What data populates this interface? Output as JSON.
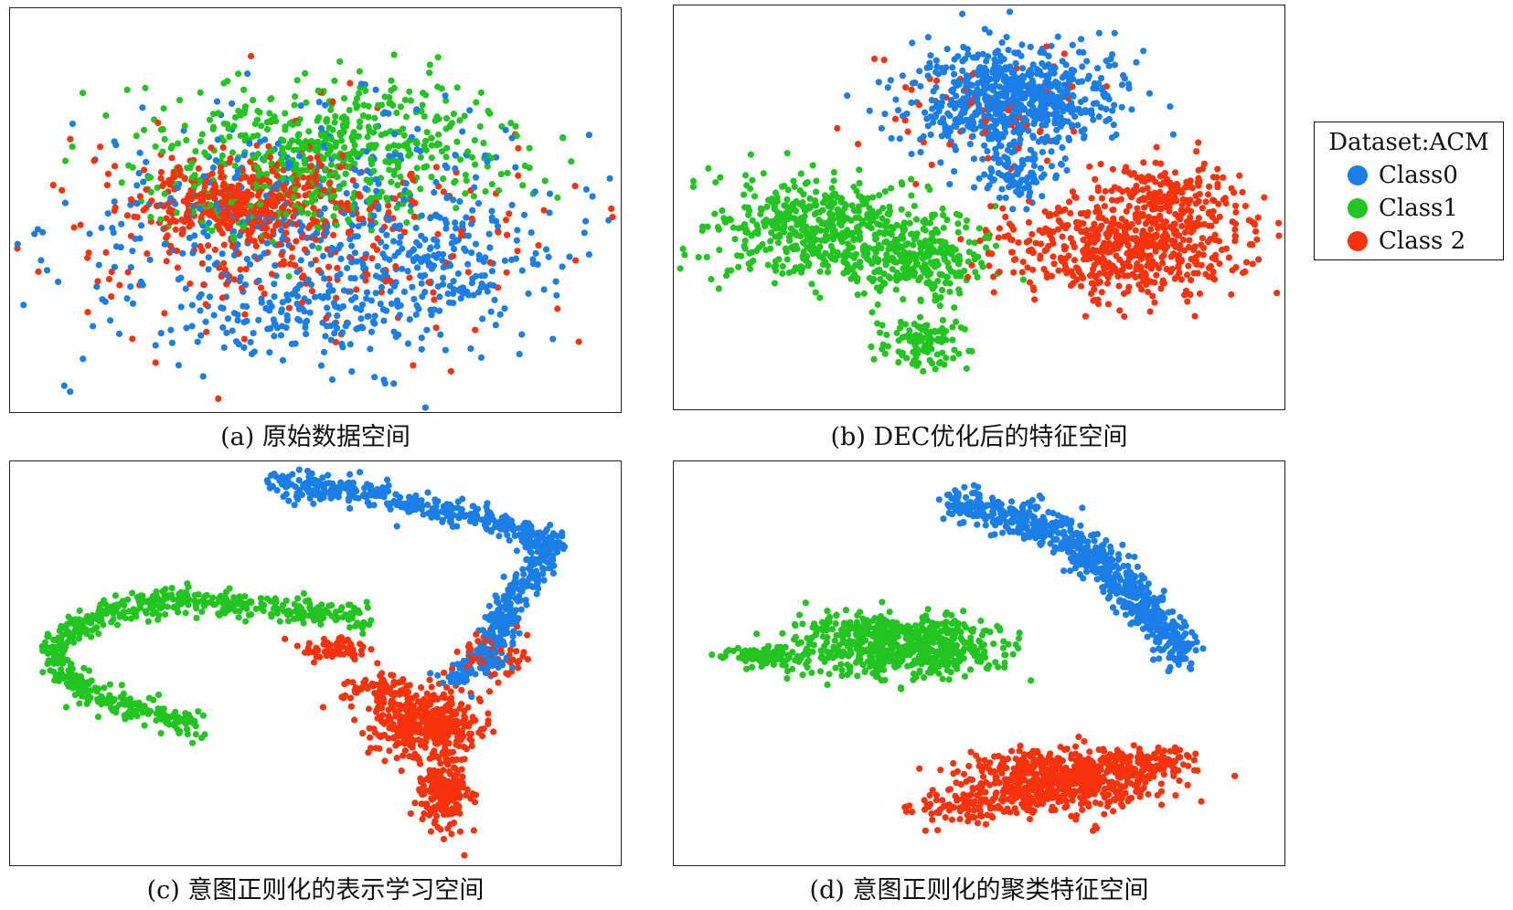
{
  "legend": {
    "title": "Dataset:ACM",
    "items": [
      {
        "label": "Class0",
        "color": "#1a7ee6"
      },
      {
        "label": "Class1",
        "color": "#22c520"
      },
      {
        "label": "Class 2",
        "color": "#f7330e"
      }
    ]
  },
  "chart_data": [
    {
      "type": "scatter",
      "id": "a",
      "caption": "(a) 原始数据空间",
      "grid": false,
      "xlim": [
        0,
        100
      ],
      "ylim": [
        0,
        100
      ],
      "series": [
        {
          "class": 0,
          "color": "#1a7ee6",
          "clusters": [
            {
              "cx": 50,
              "cy": 45,
              "rx": 43,
              "ry": 30,
              "n": 520
            },
            {
              "cx": 72,
              "cy": 34,
              "rx": 18,
              "ry": 14,
              "n": 120
            },
            {
              "cx": 50,
              "cy": 22,
              "rx": 22,
              "ry": 10,
              "n": 120
            }
          ]
        },
        {
          "class": 1,
          "color": "#22c520",
          "clusters": [
            {
              "cx": 55,
              "cy": 67,
              "rx": 30,
              "ry": 18,
              "n": 480
            },
            {
              "cx": 42,
              "cy": 55,
              "rx": 25,
              "ry": 14,
              "n": 120
            }
          ]
        },
        {
          "class": 2,
          "color": "#f7330e",
          "clusters": [
            {
              "cx": 38,
              "cy": 52,
              "rx": 18,
              "ry": 10,
              "n": 360
            },
            {
              "cx": 45,
              "cy": 45,
              "rx": 40,
              "ry": 28,
              "n": 280
            }
          ]
        }
      ]
    },
    {
      "type": "scatter",
      "id": "b",
      "caption": "(b) DEC优化后的特征空间",
      "grid": false,
      "xlim": [
        0,
        100
      ],
      "ylim": [
        0,
        100
      ],
      "series": [
        {
          "class": 0,
          "color": "#1a7ee6",
          "clusters": [
            {
              "cx": 56,
              "cy": 79,
              "rx": 17,
              "ry": 14,
              "n": 700
            },
            {
              "cx": 57,
              "cy": 58,
              "rx": 7,
              "ry": 6,
              "n": 90
            }
          ]
        },
        {
          "class": 1,
          "color": "#22c520",
          "clusters": [
            {
              "cx": 22,
              "cy": 44,
              "rx": 17,
              "ry": 14,
              "n": 480
            },
            {
              "cx": 40,
              "cy": 36,
              "rx": 12,
              "ry": 11,
              "n": 260
            },
            {
              "cx": 40,
              "cy": 14,
              "rx": 8,
              "ry": 6,
              "n": 110
            }
          ]
        },
        {
          "class": 2,
          "color": "#f7330e",
          "clusters": [
            {
              "cx": 74,
              "cy": 40,
              "rx": 21,
              "ry": 13,
              "n": 560
            },
            {
              "cx": 82,
              "cy": 53,
              "rx": 12,
              "ry": 9,
              "n": 180
            },
            {
              "cx": 52,
              "cy": 75,
              "rx": 20,
              "ry": 15,
              "n": 60
            }
          ]
        }
      ]
    },
    {
      "type": "scatter",
      "id": "c",
      "caption": "(c) 意图正则化的表示学习空间",
      "grid": false,
      "xlim": [
        0,
        100
      ],
      "ylim": [
        0,
        100
      ],
      "series": [
        {
          "class": 0,
          "color": "#1a7ee6",
          "paths": [
            {
              "pts": [
                [
                  42,
                  98
                ],
                [
                  58,
                  95
                ],
                [
                  70,
                  91
                ],
                [
                  80,
                  87
                ],
                [
                  87,
                  84
                ],
                [
                  92,
                  80
                ]
              ],
              "w": 2.6,
              "n": 380
            },
            {
              "pts": [
                [
                  90,
                  80
                ],
                [
                  86,
                  72
                ],
                [
                  82,
                  62
                ],
                [
                  80,
                  52
                ],
                [
                  74,
                  46
                ]
              ],
              "w": 3.0,
              "n": 300
            }
          ]
        },
        {
          "class": 1,
          "color": "#22c520",
          "paths": [
            {
              "pts": [
                [
                  59,
                  62
                ],
                [
                  48,
                  64
                ],
                [
                  36,
                  66
                ],
                [
                  25,
                  67
                ],
                [
                  16,
                  64
                ],
                [
                  8,
                  59
                ],
                [
                  5,
                  52
                ],
                [
                  8,
                  45
                ],
                [
                  15,
                  40
                ],
                [
                  24,
                  36
                ],
                [
                  31,
                  33
                ]
              ],
              "w": 2.6,
              "n": 620
            }
          ]
        },
        {
          "class": 2,
          "color": "#f7330e",
          "clusters": [
            {
              "cx": 69,
              "cy": 34,
              "rx": 9,
              "ry": 9,
              "n": 400
            },
            {
              "cx": 72,
              "cy": 16,
              "rx": 4,
              "ry": 9,
              "n": 200
            },
            {
              "cx": 60,
              "cy": 43,
              "rx": 6,
              "ry": 4,
              "n": 70
            },
            {
              "cx": 80,
              "cy": 52,
              "rx": 6,
              "ry": 6,
              "n": 60
            },
            {
              "cx": 53,
              "cy": 54,
              "rx": 7,
              "ry": 3,
              "n": 60
            }
          ]
        }
      ]
    },
    {
      "type": "scatter",
      "id": "d",
      "caption": "(d) 意图正则化的聚类特征空间",
      "grid": false,
      "xlim": [
        0,
        100
      ],
      "ylim": [
        0,
        100
      ],
      "series": [
        {
          "class": 0,
          "color": "#1a7ee6",
          "paths": [
            {
              "pts": [
                [
                  46,
                  92
                ],
                [
                  56,
                  89
                ],
                [
                  64,
                  84
                ],
                [
                  70,
                  78
                ],
                [
                  75,
                  70
                ],
                [
                  80,
                  62
                ],
                [
                  85,
                  52
                ]
              ],
              "w": 3.6,
              "n": 760
            }
          ]
        },
        {
          "class": 1,
          "color": "#22c520",
          "clusters": [
            {
              "cx": 37,
              "cy": 54,
              "rx": 16,
              "ry": 8,
              "n": 520
            },
            {
              "cx": 14,
              "cy": 52,
              "rx": 9,
              "ry": 3,
              "n": 90
            },
            {
              "cx": 30,
              "cy": 60,
              "rx": 14,
              "ry": 3,
              "n": 80
            }
          ]
        },
        {
          "class": 2,
          "color": "#f7330e",
          "clusters": [
            {
              "cx": 64,
              "cy": 19,
              "rx": 17,
              "ry": 8,
              "n": 640
            },
            {
              "cx": 48,
              "cy": 12,
              "rx": 8,
              "ry": 4,
              "n": 90
            },
            {
              "cx": 79,
              "cy": 24,
              "rx": 8,
              "ry": 4,
              "n": 90
            }
          ]
        }
      ]
    }
  ]
}
